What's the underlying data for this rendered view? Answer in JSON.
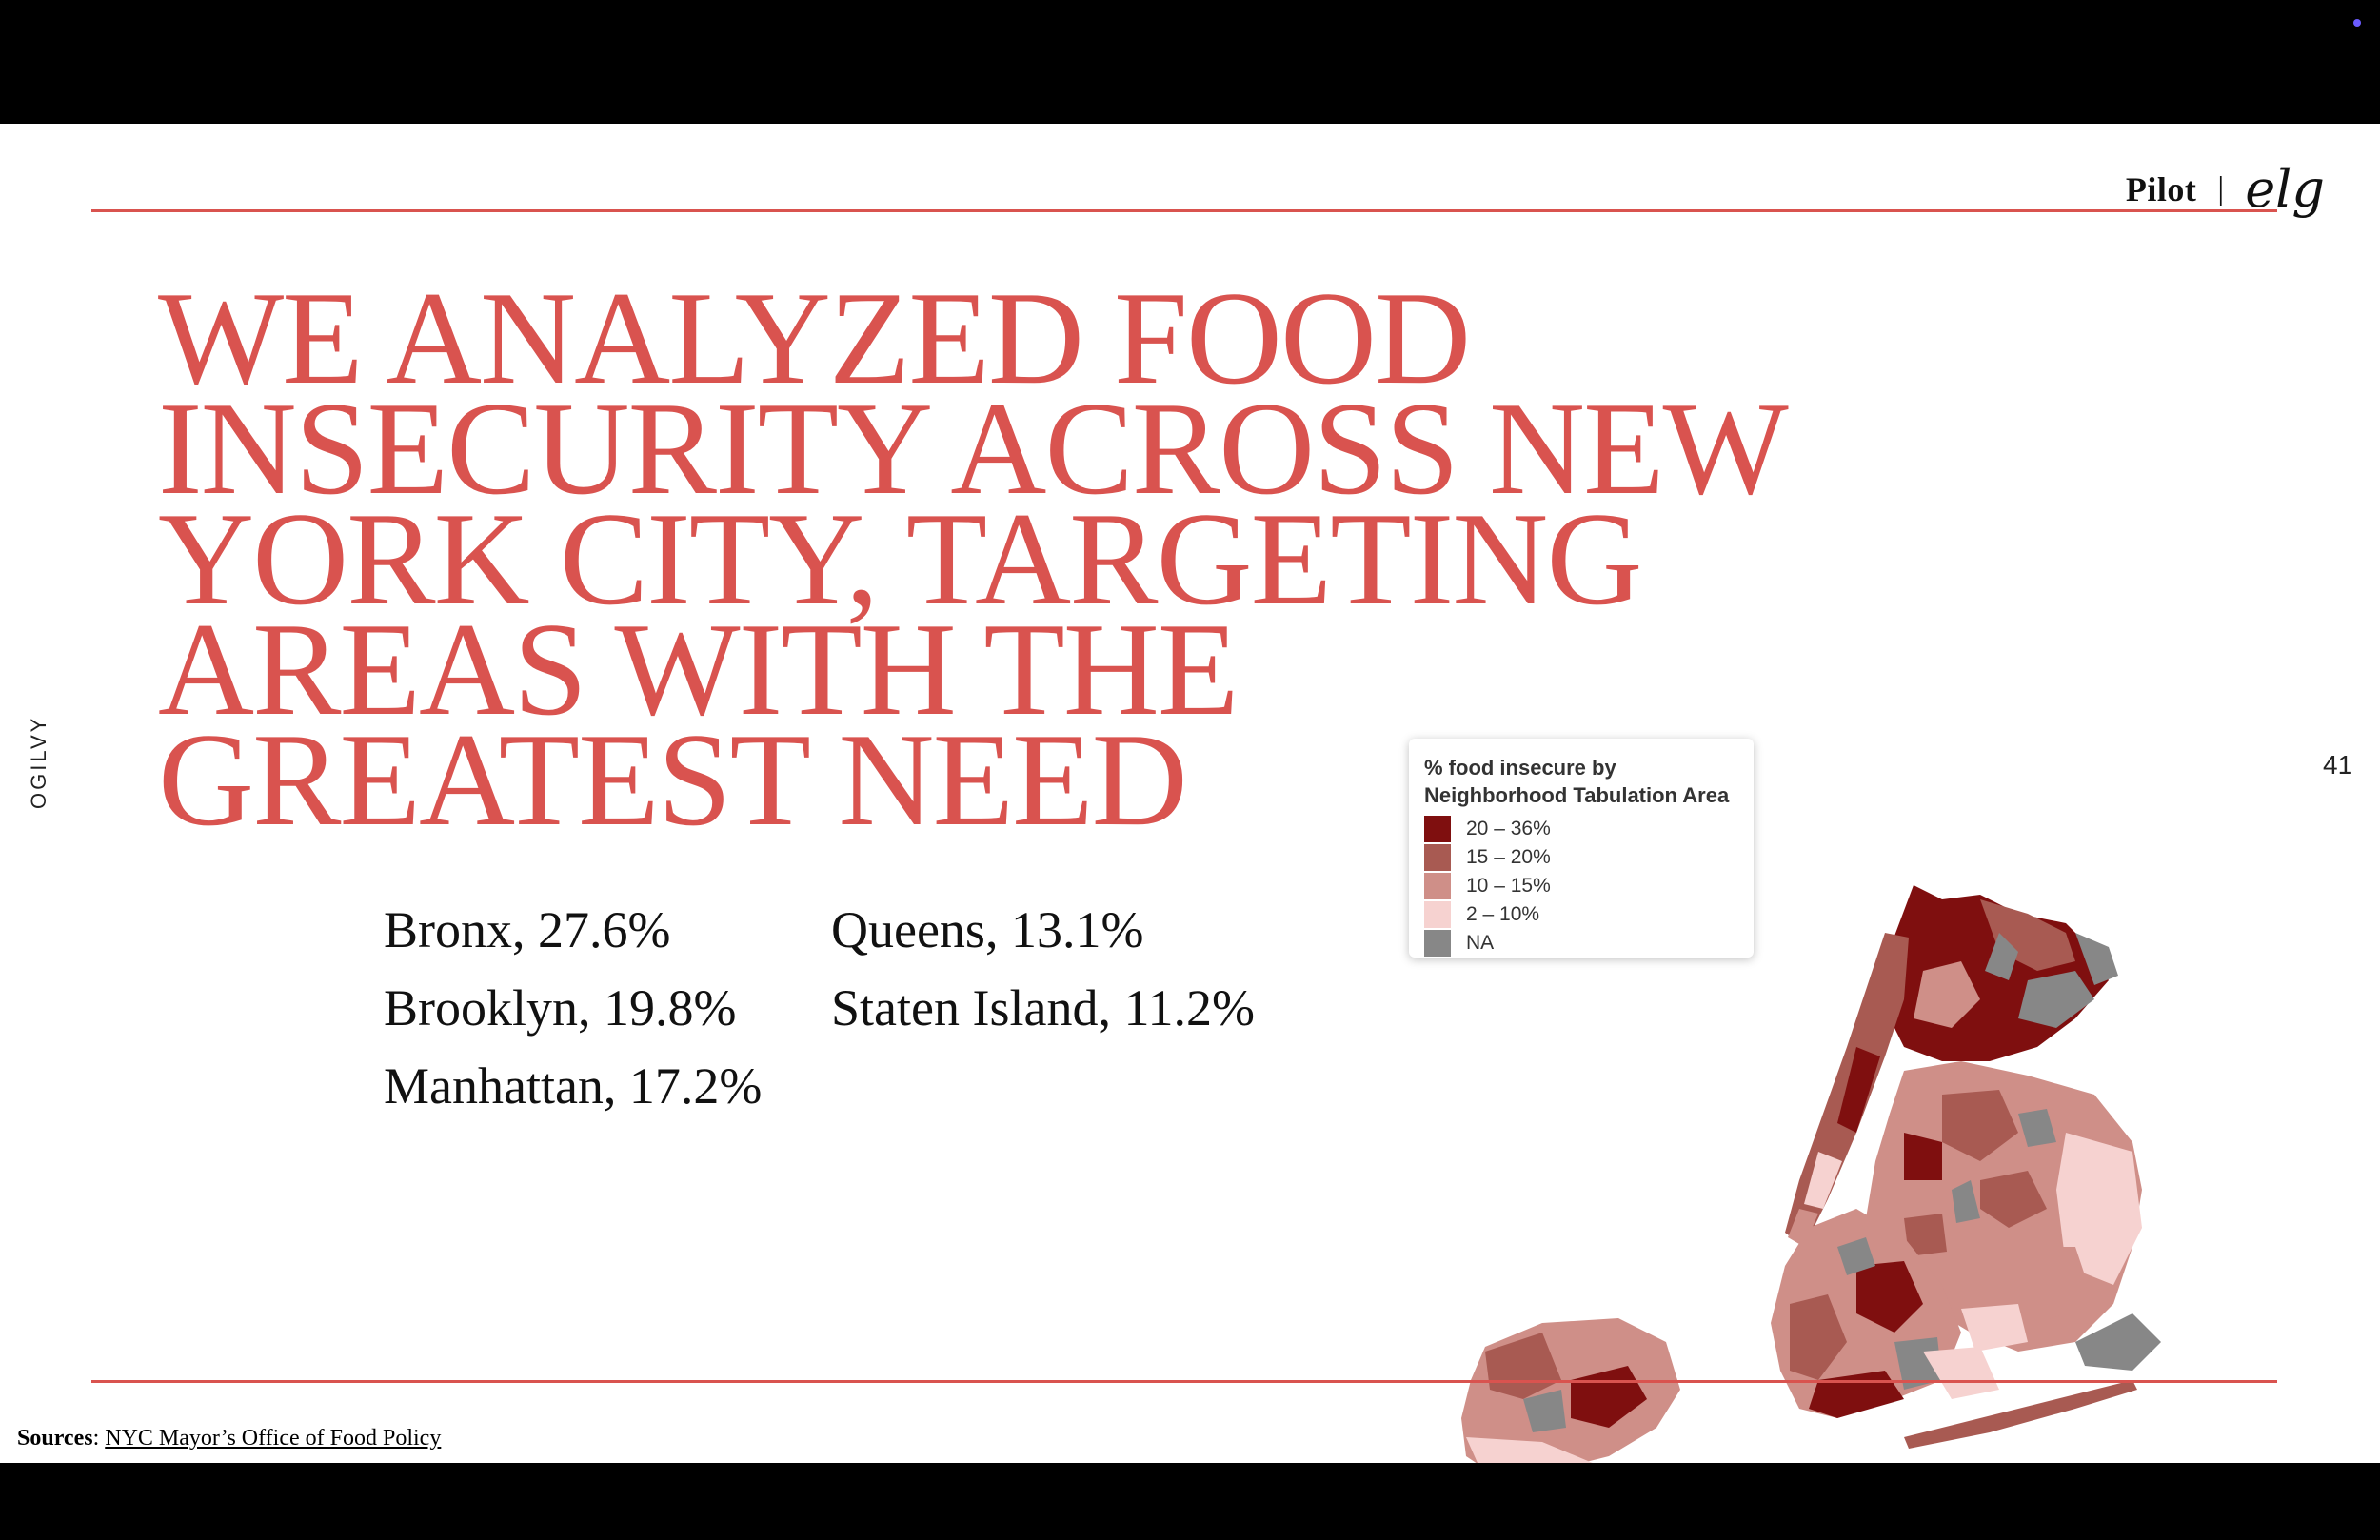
{
  "brand": {
    "pilot": "Pilot",
    "separator": "|",
    "logo": "elg"
  },
  "side_label": "OGILVY",
  "page_number": "41",
  "headline": [
    "WE ANALYZED FOOD",
    "INSECURITY ACROSS NEW",
    "YORK CITY, TARGETING",
    "AREAS WITH THE",
    "GREATEST NEED"
  ],
  "stats": [
    "Bronx, 27.6%",
    "Queens, 13.1%",
    "Brooklyn, 19.8%",
    "Staten Island, 11.2%",
    "Manhattan, 17.2%"
  ],
  "legend": {
    "title_line1": "% food insecure by",
    "title_line2": "Neighborhood Tabulation Area",
    "items": [
      {
        "label": "20 – 36%",
        "color": "#7f0f0f"
      },
      {
        "label": "15 – 20%",
        "color": "#a85a52"
      },
      {
        "label": "10 – 15%",
        "color": "#cf8f88"
      },
      {
        "label": "2 – 10%",
        "color": "#f6d2d0"
      },
      {
        "label": "NA",
        "color": "#878787"
      }
    ]
  },
  "sources": {
    "label": "Sources",
    "colon": ":",
    "link_text": "NYC Mayor’s Office of Food Policy"
  },
  "colors": {
    "accent": "#d9534f",
    "dark_red": "#7f0f0f",
    "mid_red": "#a85a52",
    "light_red": "#cf8f88",
    "pale_red": "#f6d2d0",
    "na_gray": "#878787"
  }
}
